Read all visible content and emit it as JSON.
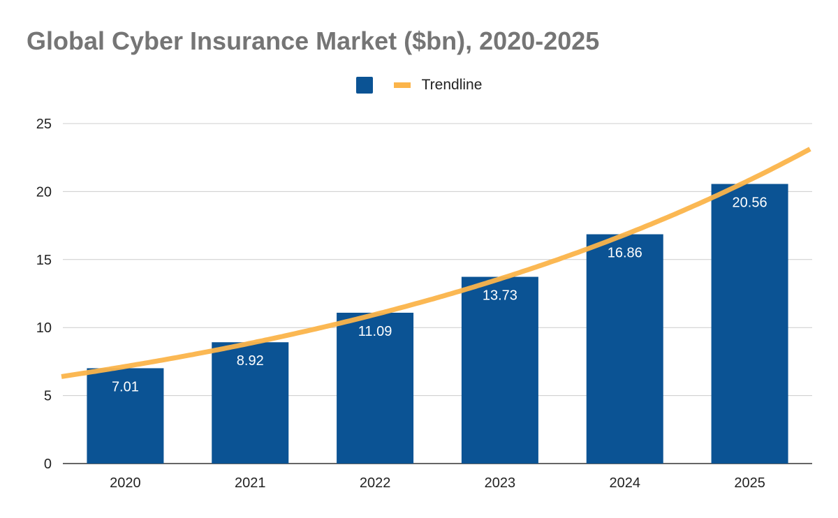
{
  "chart_data": {
    "type": "bar",
    "title": "Global Cyber Insurance Market ($bn), 2020-2025",
    "categories": [
      "2020",
      "2021",
      "2022",
      "2023",
      "2024",
      "2025"
    ],
    "series": [
      {
        "values": [
          7.01,
          8.92,
          11.09,
          13.73,
          16.86,
          20.56
        ],
        "color": "#0b5394"
      }
    ],
    "data_labels": [
      "7.01",
      "8.92",
      "11.09",
      "13.73",
      "16.86",
      "20.56"
    ],
    "trendline": {
      "name": "Trendline",
      "type": "exponential",
      "color": "#fbb44a"
    },
    "ylim": [
      0,
      25
    ],
    "yticks": [
      "0",
      "5",
      "10",
      "15",
      "20",
      "25"
    ],
    "grid": true,
    "legend": "top",
    "xlabel": "",
    "ylabel": ""
  }
}
